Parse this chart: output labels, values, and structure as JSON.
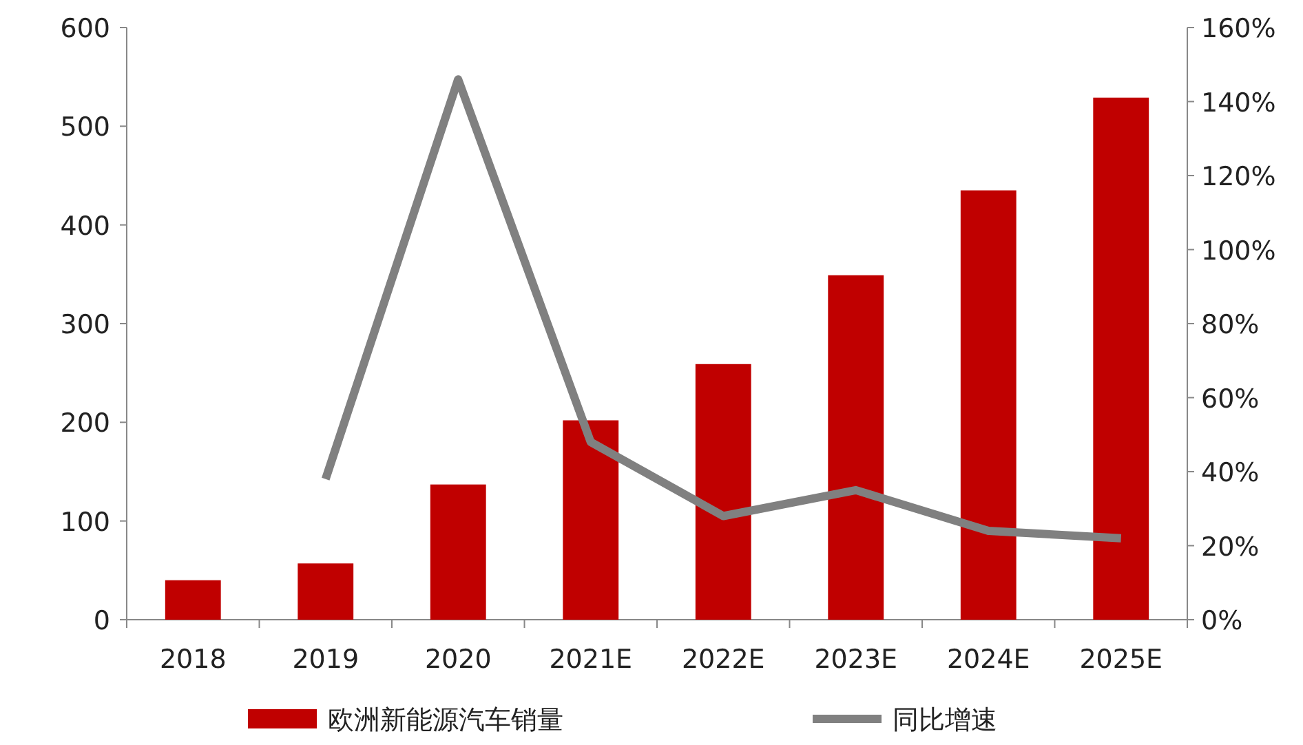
{
  "chart_data": {
    "type": "bar",
    "categories": [
      "2018",
      "2019",
      "2020",
      "2021E",
      "2022E",
      "2023E",
      "2024E",
      "2025E"
    ],
    "series": [
      {
        "name": "欧洲新能源汽车销量",
        "color": "#c00000",
        "values": [
          40,
          57,
          137,
          202,
          259,
          349,
          435,
          529
        ]
      },
      {
        "name": "同比增速",
        "type": "line",
        "axis": "y2",
        "color": "#808080",
        "values": [
          null,
          38,
          146,
          48,
          28,
          35,
          24,
          22
        ]
      }
    ],
    "ylim": [
      0,
      600
    ],
    "yticks": [
      0,
      100,
      200,
      300,
      400,
      500,
      600
    ],
    "y2lim": [
      0,
      160
    ],
    "y2ticks": [
      {
        "value": 0,
        "label": "0%"
      },
      {
        "value": 20,
        "label": "20%"
      },
      {
        "value": 40,
        "label": "40%"
      },
      {
        "value": 60,
        "label": "60%"
      },
      {
        "value": 80,
        "label": "80%"
      },
      {
        "value": 100,
        "label": "100%"
      },
      {
        "value": 120,
        "label": "120%"
      },
      {
        "value": 140,
        "label": "140%"
      },
      {
        "value": 160,
        "label": "160%"
      }
    ],
    "legend": "bottom",
    "grid": false
  }
}
